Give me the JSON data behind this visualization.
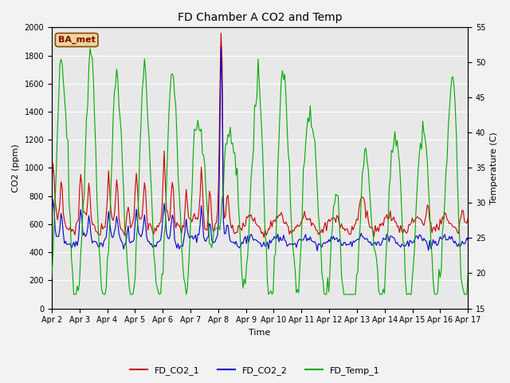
{
  "title": "FD Chamber A CO2 and Temp",
  "xlabel": "Time",
  "ylabel_left": "CO2 (ppm)",
  "ylabel_right": "Temperature (C)",
  "ylim_left": [
    0,
    2000
  ],
  "ylim_right": [
    15,
    55
  ],
  "yticks_left": [
    0,
    200,
    400,
    600,
    800,
    1000,
    1200,
    1400,
    1600,
    1800,
    2000
  ],
  "yticks_right": [
    15,
    20,
    25,
    30,
    35,
    40,
    45,
    50,
    55
  ],
  "bg_color": "#e8e8e8",
  "grid_color": "#ffffff",
  "annotation_text": "BA_met",
  "annotation_bg": "#e8d898",
  "annotation_border": "#8b4513",
  "annotation_text_color": "#8b0000",
  "line_colors": {
    "FD_CO2_1": "#cc0000",
    "FD_CO2_2": "#0000cc",
    "FD_Temp_1": "#00aa00"
  },
  "xtick_labels": [
    "Apr 2",
    "Apr 3",
    "Apr 4",
    "Apr 5",
    "Apr 6",
    "Apr 7",
    "Apr 8",
    "Apr 9",
    "Apr 10",
    "Apr 11",
    "Apr 12",
    "Apr 13",
    "Apr 14",
    "Apr 15",
    "Apr 16",
    "Apr 17"
  ],
  "figsize": [
    6.4,
    4.8
  ],
  "dpi": 100
}
